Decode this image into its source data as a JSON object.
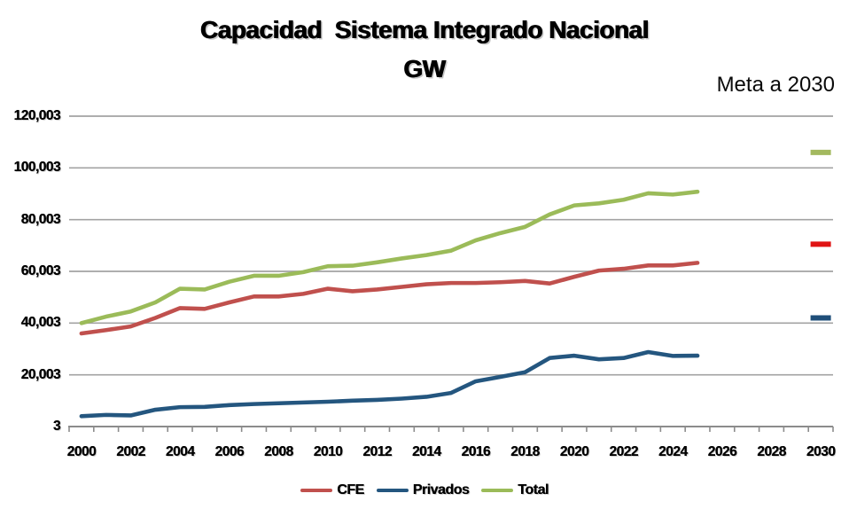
{
  "title": {
    "line1": "Capacidad  Sistema Integrado Nacional",
    "line2": "GW"
  },
  "annotation": {
    "meta_label": "Meta a 2030"
  },
  "legend": [
    {
      "label": "CFE",
      "color": "#C0504D"
    },
    {
      "label": "Privados",
      "color": "#24567F"
    },
    {
      "label": "Total",
      "color": "#9BBB59"
    }
  ],
  "colors": {
    "cfe_line": "#C0504D",
    "privados_line": "#24567F",
    "total_line": "#9BBB59",
    "meta_cfe": "#E01414",
    "meta_privados": "#1F4E79",
    "meta_total": "#A3B95F",
    "gridline": "#A3A3A3",
    "axis": "#8C8C8C",
    "text": "#000000"
  },
  "chart_data": {
    "type": "line",
    "title": "Capacidad Sistema Integrado Nacional GW",
    "xlabel": "",
    "ylabel": "",
    "grid": true,
    "legend_position": "bottom",
    "xlim": [
      2000,
      2030
    ],
    "ylim": [
      3,
      120003
    ],
    "y_ticks": [
      {
        "label": "120,003",
        "value": 120003
      },
      {
        "label": "100,003",
        "value": 100003
      },
      {
        "label": "80,003",
        "value": 80003
      },
      {
        "label": "60,003",
        "value": 60003
      },
      {
        "label": "40,003",
        "value": 40003
      },
      {
        "label": "20,003",
        "value": 20003
      },
      {
        "label": "3",
        "value": 3
      }
    ],
    "x_tick_labels": [
      "2000",
      "2002",
      "2004",
      "2006",
      "2008",
      "2010",
      "2012",
      "2014",
      "2016",
      "2018",
      "2020",
      "2022",
      "2024",
      "2026",
      "2028",
      "2030"
    ],
    "x": [
      2000,
      2001,
      2002,
      2003,
      2004,
      2005,
      2006,
      2007,
      2008,
      2009,
      2010,
      2011,
      2012,
      2013,
      2014,
      2015,
      2016,
      2017,
      2018,
      2019,
      2020,
      2021,
      2022,
      2023,
      2024,
      2025
    ],
    "series": [
      {
        "name": "CFE",
        "color": "#C0504D",
        "values": [
          36000,
          37300,
          38700,
          42000,
          45800,
          45500,
          48000,
          50300,
          50300,
          51300,
          53300,
          52300,
          53000,
          54000,
          55000,
          55500,
          55500,
          55800,
          56300,
          55300,
          57900,
          60300,
          61000,
          62300,
          62300,
          63300
        ]
      },
      {
        "name": "Privados",
        "color": "#24567F",
        "values": [
          4000,
          4500,
          4300,
          6500,
          7500,
          7600,
          8300,
          8700,
          9000,
          9300,
          9600,
          10000,
          10300,
          10800,
          11500,
          13000,
          17500,
          19200,
          21000,
          26500,
          27400,
          26000,
          26500,
          28800,
          27300,
          27400
        ]
      },
      {
        "name": "Total",
        "color": "#9BBB59",
        "values": [
          40000,
          42500,
          44500,
          48000,
          53300,
          53000,
          56000,
          58300,
          58300,
          59700,
          62000,
          62200,
          63500,
          65000,
          66300,
          68000,
          72000,
          74800,
          77200,
          82000,
          85500,
          86300,
          87700,
          90200,
          89700,
          90800
        ]
      }
    ],
    "meta_2030": [
      {
        "name": "Total",
        "year": 2030,
        "value": 106000,
        "color": "#A3B95F"
      },
      {
        "name": "CFE",
        "year": 2030,
        "value": 70500,
        "color": "#E01414"
      },
      {
        "name": "Privados",
        "year": 2030,
        "value": 42000,
        "color": "#1F4E79"
      }
    ]
  }
}
